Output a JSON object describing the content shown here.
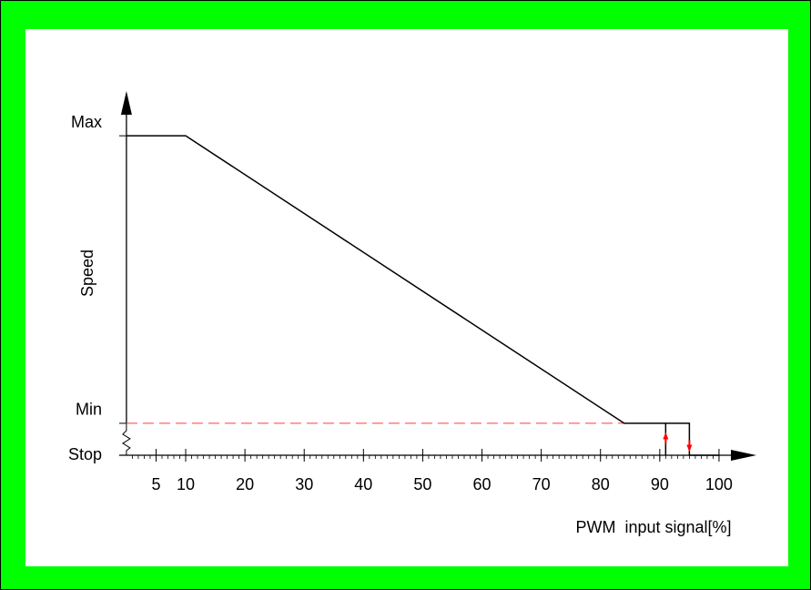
{
  "chart_data": {
    "type": "line",
    "ylabel": "Speed",
    "xlabel": "PWM  input signal[%]",
    "xlim": [
      0,
      106
    ],
    "ylim": [
      0,
      114
    ],
    "xticks": [
      5,
      10,
      20,
      30,
      40,
      50,
      60,
      70,
      80,
      90,
      100
    ],
    "xminor_step": 1,
    "yticks": [
      {
        "value": 0,
        "label": "Stop"
      },
      {
        "value": 10,
        "label": "Min"
      },
      {
        "value": 100,
        "label": "Max"
      }
    ],
    "min_line_color": "#ff3b3b",
    "arrow_color": "#ff0000",
    "series": [
      {
        "color": "#000000",
        "x": [
          0,
          10,
          84,
          95,
          95,
          100
        ],
        "values": [
          100,
          100,
          10,
          10,
          0,
          0
        ]
      },
      {
        "color": "#000000",
        "x": [
          91,
          91
        ],
        "values": [
          0,
          10
        ]
      }
    ]
  }
}
